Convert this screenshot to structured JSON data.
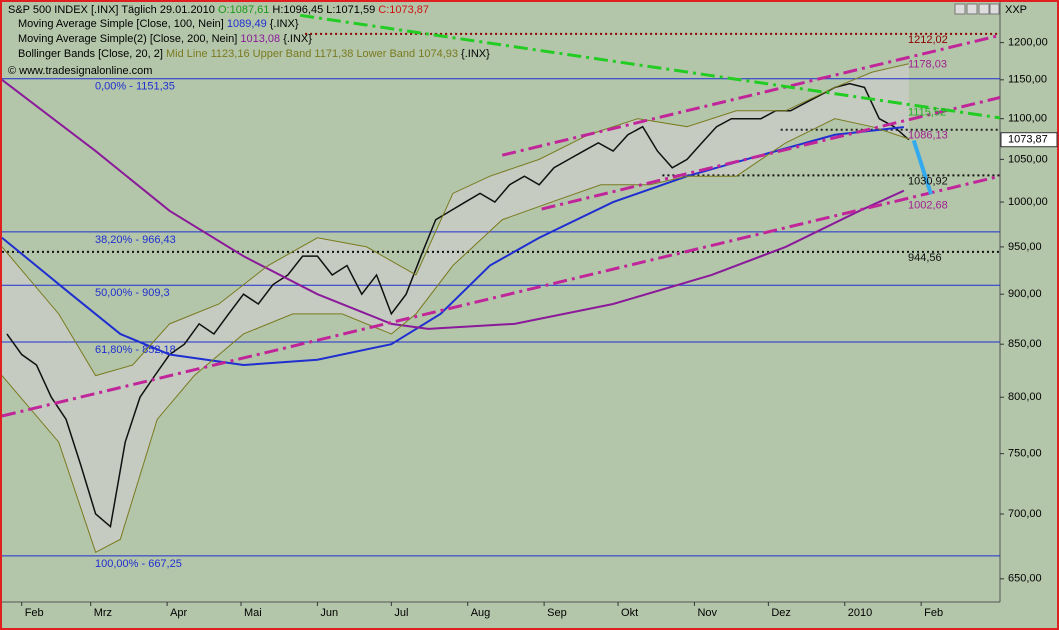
{
  "chart_data": {
    "type": "line",
    "header": {
      "symbol": "S&P 500 INDEX [.INX]",
      "interval": "Täglich",
      "date": "29.01.2010",
      "open": "O:1087,61",
      "high": "H:1096,45",
      "low": "L:1071,59",
      "close": "C:1073,87"
    },
    "legend_lines": [
      {
        "name": "Moving Average Simple [Close, 100, Nein]",
        "value": "1089,49",
        "color": "#1f2fd0",
        "suffix": "{.INX}"
      },
      {
        "name": "Moving Average Simple(2) [Close, 200, Nein]",
        "value": "1013,08",
        "color": "#8a1a9a",
        "suffix": "{.INX}"
      }
    ],
    "bollinger_legend": {
      "name": "Bollinger Bands [Close, 20, 2]",
      "mid": "Mid Line",
      "mid_value": "1123,16",
      "upper_value": "1171,38",
      "lower_value": "1074,93",
      "color": "#7a7a20",
      "suffix": "{.INX}"
    },
    "copyright": "© www.tradesignalonline.com",
    "corner_label": "XXP",
    "last_price_label": "1073,87",
    "log_y": true,
    "xlim": [
      -8,
      397
    ],
    "ylim": [
      633,
      1257
    ],
    "xticks": [
      {
        "value": 0,
        "label": "Feb"
      },
      {
        "value": 28,
        "label": "Mrz"
      },
      {
        "value": 59,
        "label": "Apr"
      },
      {
        "value": 89,
        "label": "Mai"
      },
      {
        "value": 120,
        "label": "Jun"
      },
      {
        "value": 150,
        "label": "Jul"
      },
      {
        "value": 181,
        "label": "Aug"
      },
      {
        "value": 212,
        "label": "Sep"
      },
      {
        "value": 242,
        "label": "Okt"
      },
      {
        "value": 273,
        "label": "Nov"
      },
      {
        "value": 303,
        "label": "Dez"
      },
      {
        "value": 334,
        "label": "2010"
      },
      {
        "value": 365,
        "label": "Feb"
      }
    ],
    "yticks": [
      {
        "value": 650,
        "label": "650,00"
      },
      {
        "value": 700,
        "label": "700,00"
      },
      {
        "value": 750,
        "label": "750,00"
      },
      {
        "value": 800,
        "label": "800,00"
      },
      {
        "value": 850,
        "label": "850,00"
      },
      {
        "value": 900,
        "label": "900,00"
      },
      {
        "value": 950,
        "label": "950,00"
      },
      {
        "value": 1000,
        "label": "1000,00"
      },
      {
        "value": 1050,
        "label": "1050,00"
      },
      {
        "value": 1100,
        "label": "1100,00"
      },
      {
        "value": 1150,
        "label": "1150,00"
      },
      {
        "value": 1200,
        "label": "1200,00"
      }
    ],
    "series": [
      {
        "name": "S&P 500 INDEX [.INX]",
        "color": "#111111",
        "width": 1.5,
        "x": [
          -6,
          0,
          6,
          12,
          18,
          24,
          30,
          36,
          42,
          48,
          54,
          60,
          66,
          72,
          78,
          84,
          90,
          96,
          102,
          108,
          114,
          120,
          126,
          132,
          138,
          144,
          150,
          156,
          162,
          168,
          174,
          180,
          186,
          192,
          198,
          204,
          210,
          216,
          222,
          228,
          234,
          240,
          246,
          252,
          258,
          264,
          270,
          276,
          282,
          288,
          294,
          300,
          306,
          312,
          318,
          324,
          330,
          336,
          342,
          348,
          354,
          360
        ],
        "values": [
          860,
          840,
          830,
          800,
          780,
          740,
          700,
          690,
          760,
          800,
          820,
          840,
          850,
          870,
          860,
          880,
          900,
          890,
          910,
          920,
          940,
          940,
          920,
          930,
          900,
          920,
          880,
          900,
          940,
          980,
          990,
          1000,
          1010,
          1000,
          1020,
          1030,
          1020,
          1040,
          1050,
          1060,
          1070,
          1060,
          1080,
          1090,
          1060,
          1040,
          1050,
          1070,
          1090,
          1100,
          1100,
          1100,
          1110,
          1110,
          1120,
          1130,
          1140,
          1145,
          1140,
          1100,
          1090,
          1073.87
        ]
      },
      {
        "name": "Moving Average Simple [Close, 100, Nein]",
        "color": "#1f2fd0",
        "width": 2,
        "x": [
          -8,
          20,
          40,
          60,
          90,
          120,
          150,
          170,
          190,
          210,
          240,
          270,
          300,
          330,
          358
        ],
        "values": [
          960,
          900,
          860,
          840,
          830,
          835,
          850,
          880,
          930,
          960,
          1000,
          1030,
          1055,
          1080,
          1089.49
        ]
      },
      {
        "name": "Moving Average Simple(2) [Close, 200, Nein]",
        "color": "#8a1a9a",
        "width": 2,
        "x": [
          -8,
          30,
          60,
          90,
          120,
          150,
          165,
          200,
          240,
          280,
          310,
          340,
          358
        ],
        "values": [
          1150,
          1060,
          990,
          940,
          900,
          870,
          865,
          870,
          890,
          920,
          950,
          990,
          1013.08
        ]
      },
      {
        "name": "Upper Band",
        "color": "#7a7a20",
        "width": 1,
        "x": [
          -8,
          15,
          30,
          45,
          60,
          80,
          100,
          120,
          140,
          160,
          175,
          190,
          210,
          230,
          250,
          270,
          290,
          310,
          330,
          345,
          360
        ],
        "values": [
          950,
          880,
          820,
          830,
          870,
          890,
          930,
          960,
          950,
          920,
          1010,
          1030,
          1050,
          1080,
          1100,
          1090,
          1110,
          1110,
          1140,
          1160,
          1171.38
        ]
      },
      {
        "name": "Lower Band",
        "color": "#7a7a20",
        "width": 1,
        "x": [
          -8,
          15,
          30,
          40,
          55,
          70,
          90,
          110,
          130,
          150,
          160,
          175,
          195,
          215,
          235,
          255,
          270,
          290,
          310,
          330,
          345,
          360
        ],
        "values": [
          820,
          760,
          670,
          680,
          780,
          820,
          860,
          880,
          880,
          860,
          880,
          930,
          980,
          1000,
          1020,
          1020,
          1030,
          1030,
          1070,
          1100,
          1090,
          1074.93
        ]
      }
    ],
    "fib_levels": [
      {
        "value": 1151.35,
        "label": "0,00% - 1151,35"
      },
      {
        "value": 966.43,
        "label": "38,20% - 966,43"
      },
      {
        "value": 909.3,
        "label": "50,00% - 909,3"
      },
      {
        "value": 852.18,
        "label": "61,80% - 852,18"
      },
      {
        "value": 667.25,
        "label": "100,00% - 667,25"
      }
    ],
    "fib_color": "#1f2fd0",
    "dotted_levels": [
      {
        "value": 1212.02,
        "from": 115,
        "color": "#8b0000"
      },
      {
        "value": 1086.13,
        "from": 308,
        "color": "#222222"
      },
      {
        "value": 1030.92,
        "from": 260,
        "color": "#111111"
      },
      {
        "value": 944.56,
        "from": -8,
        "color": "#111111"
      }
    ],
    "price_labels": [
      {
        "value": 1212.02,
        "label": "1212,02",
        "color": "#8b0000"
      },
      {
        "value": 1178.03,
        "label": "1178,03",
        "color": "#a0208f"
      },
      {
        "value": 1115.52,
        "label": "1115,52",
        "color": "#22b022"
      },
      {
        "value": 1086.13,
        "label": "1086,13",
        "color": "#a0208f"
      },
      {
        "value": 1030.92,
        "label": "1030,92",
        "color": "#111111"
      },
      {
        "value": 1002.68,
        "label": "1002,68",
        "color": "#a0208f"
      },
      {
        "value": 944.56,
        "label": "944,56",
        "color": "#111111"
      }
    ],
    "trendlines": [
      {
        "x": [
          -8,
          397
        ],
        "values": [
          783,
          1030
        ],
        "color": "#c0269a",
        "width": 3,
        "dash": "14 5 3 5"
      },
      {
        "x": [
          211,
          397
        ],
        "values": [
          992,
          1127
        ],
        "color": "#c0269a",
        "width": 3,
        "dash": "14 5 3 5"
      },
      {
        "x": [
          195,
          397
        ],
        "values": [
          1055,
          1210
        ],
        "color": "#c0269a",
        "width": 3,
        "dash": "14 5 3 5"
      },
      {
        "x": [
          113,
          397
        ],
        "values": [
          1238,
          1101
        ],
        "color": "#22cc22",
        "width": 3,
        "dash": "14 5 3 5"
      },
      {
        "x": [
          362,
          369
        ],
        "values": [
          1073,
          1009
        ],
        "color": "#33aaee",
        "width": 4,
        "dash": "none"
      }
    ]
  }
}
